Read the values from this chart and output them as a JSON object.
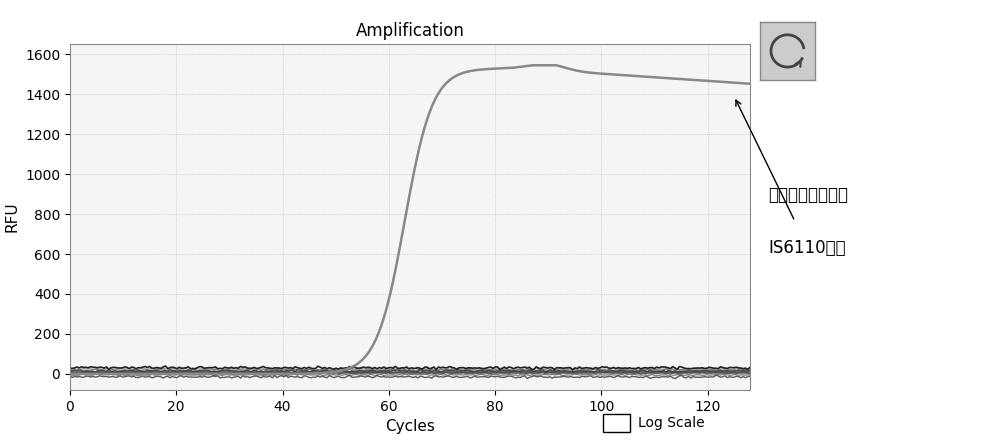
{
  "title": "Amplification",
  "xlabel": "Cycles",
  "ylabel": "RFU",
  "xlim": [
    0,
    128
  ],
  "ylim": [
    -80,
    1650
  ],
  "yticks": [
    0,
    200,
    400,
    600,
    800,
    1000,
    1200,
    1400,
    1600
  ],
  "xticks": [
    0,
    20,
    40,
    60,
    80,
    100,
    120
  ],
  "annotation_line1": "结核杆菌复合菌群",
  "annotation_line2": "IS6110基因",
  "log_scale_label": "Log Scale",
  "bg_color": "#ffffff",
  "plot_bg_color": "#f5f5f5",
  "curve_color": "#888888",
  "arrow_color": "#000000",
  "title_fontsize": 12,
  "axis_label_fontsize": 11,
  "tick_fontsize": 10,
  "annotation_fontsize": 12
}
